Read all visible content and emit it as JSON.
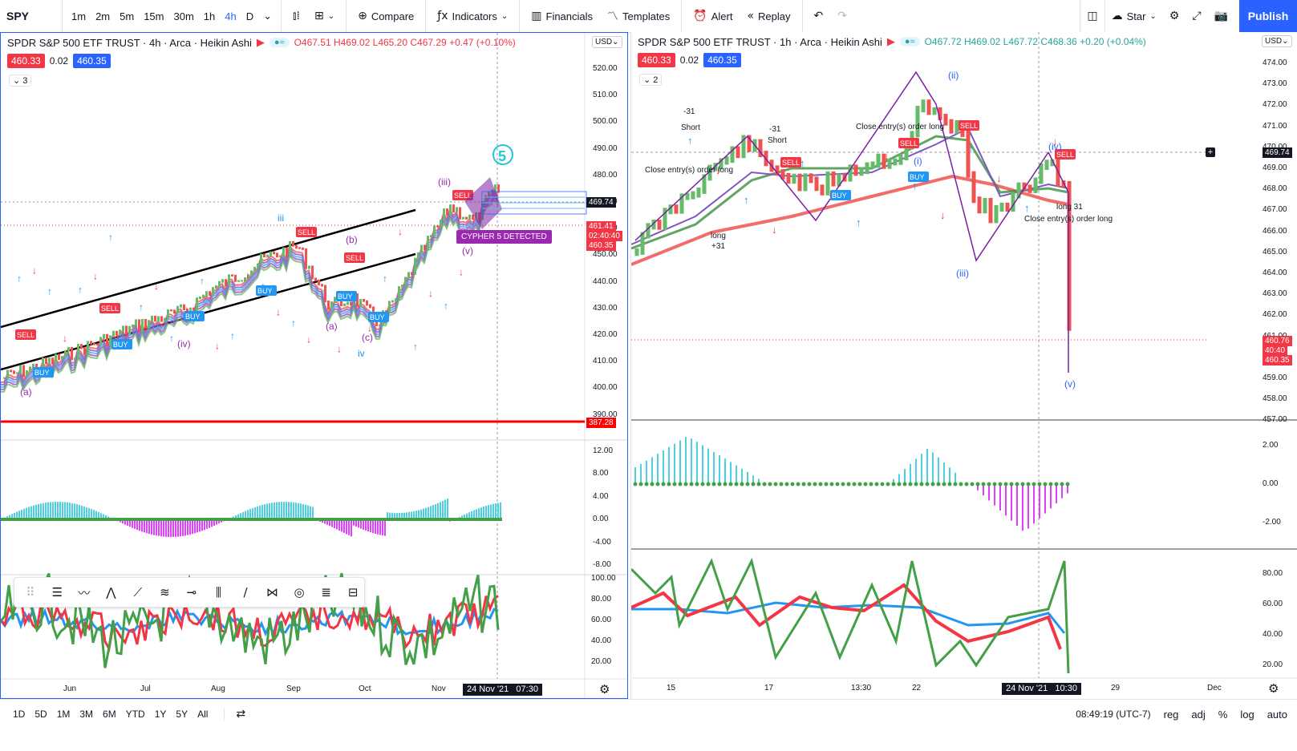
{
  "toolbar": {
    "symbol": "SPY",
    "timeframes": [
      "1m",
      "2m",
      "5m",
      "15m",
      "30m",
      "1h",
      "4h",
      "D"
    ],
    "active_timeframe": "4h",
    "compare": "Compare",
    "indicators": "Indicators",
    "financials": "Financials",
    "templates": "Templates",
    "alert": "Alert",
    "replay": "Replay",
    "layout_name": "Star",
    "publish": "Publish"
  },
  "left_chart": {
    "title": "SPDR S&P 500 ETF TRUST · 4h · Arca · Heikin Ashi",
    "ohlc": "O467.51 H469.02 L465.20 C467.29 +0.47 (+0.10%)",
    "bid": "460.33",
    "spread": "0.02",
    "ask": "460.35",
    "collapse_count": "3",
    "currency": "USD",
    "price_ticks": [
      "520.00",
      "510.00",
      "500.00",
      "490.00",
      "480.00",
      "470.00",
      "460.00",
      "450.00",
      "440.00",
      "430.00",
      "420.00",
      "410.00",
      "400.00",
      "390.00"
    ],
    "tag_last": "469.74",
    "tag_close": "461.41",
    "tag_countdown": "02:40:40",
    "tag_ask": "460.35",
    "tag_support": "387.28",
    "macd_ticks": [
      "12.00",
      "8.00",
      "4.00",
      "0.00",
      "-4.00",
      "-8.00"
    ],
    "osc_ticks": [
      "100.00",
      "80.00",
      "60.00",
      "40.00",
      "20.00"
    ],
    "time_ticks": [
      "Jun",
      "Jul",
      "Aug",
      "Sep",
      "Oct",
      "Nov"
    ],
    "time_cursor": "24 Nov '21",
    "time_cursor2": "07:30",
    "pattern_label": "CYPHER 5 DETECTED",
    "wave_labels": [
      "(iii)",
      "(iv)",
      "(v)",
      "iii",
      "(iv)",
      "(a)",
      "(b)",
      "(c)",
      "iv",
      "(a)"
    ],
    "signals": [
      "SELL",
      "BUY",
      "BUY",
      "SELL",
      "SELL",
      "BUY",
      "BUY",
      "SELL",
      "BUY"
    ]
  },
  "right_chart": {
    "title": "SPDR S&P 500 ETF TRUST · 1h · Arca · Heikin Ashi",
    "ohlc": "O467.72 H469.02 L467.72 C468.36 +0.20 (+0.04%)",
    "bid": "460.33",
    "spread": "0.02",
    "ask": "460.35",
    "collapse_count": "2",
    "currency": "USD",
    "price_ticks": [
      "474.00",
      "473.00",
      "472.00",
      "471.00",
      "470.00",
      "469.00",
      "468.00",
      "467.00",
      "466.00",
      "465.00",
      "464.00",
      "463.00",
      "462.00",
      "461.00",
      "460.00",
      "459.00",
      "458.00",
      "457.00"
    ],
    "tag_last": "469.74",
    "tag_close": "460.76",
    "tag_countdown": "40:40",
    "tag_ask": "460.35",
    "macd_ticks": [
      "2.00",
      "0.00",
      "-2.00"
    ],
    "osc_ticks": [
      "80.00",
      "60.00",
      "40.00",
      "20.00"
    ],
    "time_ticks": [
      "15",
      "17",
      "13:30",
      "22",
      "29",
      "Dec"
    ],
    "time_cursor": "24 Nov '21",
    "time_cursor2": "10:30",
    "annotations": [
      "-31",
      "Short",
      "Close entry(s) order long",
      "long",
      "+31"
    ],
    "wave_labels": [
      "(ii)",
      "(i)",
      "(iii)",
      "(iv)",
      "(v)"
    ],
    "signals": [
      "SELL",
      "SELL",
      "BUY",
      "SELL",
      "BUY",
      "SELL"
    ]
  },
  "bottom": {
    "ranges": [
      "1D",
      "5D",
      "1M",
      "3M",
      "6M",
      "YTD",
      "1Y",
      "5Y",
      "All"
    ],
    "clock": "08:49:19 (UTC-7)",
    "reg": "reg",
    "adj": "adj",
    "pct": "%",
    "log": "log",
    "auto": "auto"
  },
  "colors": {
    "accent": "#2962ff",
    "bull": "#26a69a",
    "bear": "#f23645",
    "ha_green": "#66bb6a",
    "ha_red": "#ef5350"
  }
}
